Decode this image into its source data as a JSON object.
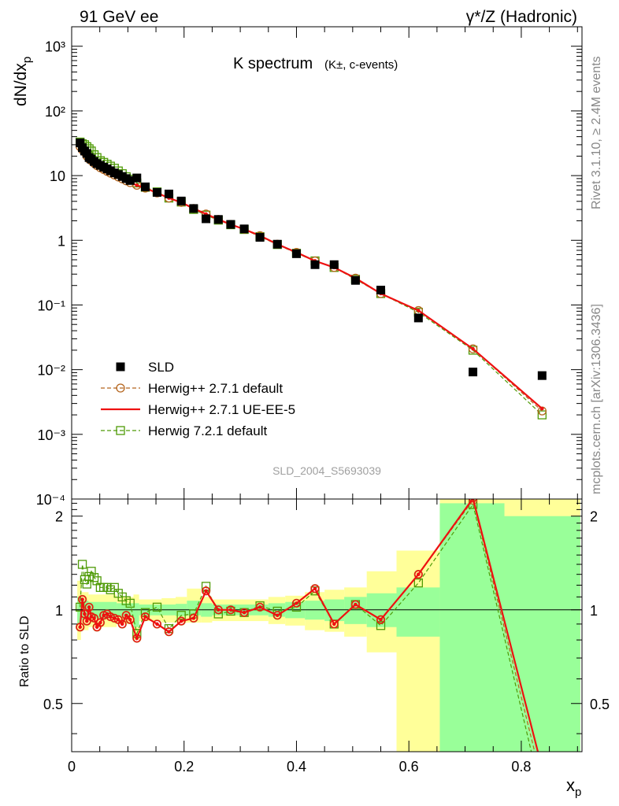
{
  "header": {
    "left": "91 GeV ee",
    "right": "γ*/Z (Hadronic)"
  },
  "side_labels": {
    "rivet": "Rivet 3.1.10, ≥ 2.4M events",
    "mcplots": "mcplots.cern.ch [arXiv:1306.3436]"
  },
  "chart_data": {
    "type": "scatter",
    "title_main": "K spectrum",
    "title_sub": "(K±, c-events)",
    "analysis_id": "SLD_2004_S5693039",
    "ylabel_main": "dN/dx",
    "ylabel_main_sub": "p",
    "ylabel_ratio": "Ratio to SLD",
    "xlabel": "x",
    "xlabel_sub": "p",
    "xlim": [
      0,
      0.908
    ],
    "ylim_main": [
      0.0001,
      2000
    ],
    "yscale_main": "log",
    "ylim_ratio": [
      0.35,
      2.27
    ],
    "yscale_ratio": "log",
    "x_ticks": [
      "0",
      "0.2",
      "0.4",
      "0.6",
      "0.8"
    ],
    "y_ticks_main": [
      "10⁻⁴",
      "10⁻³",
      "10⁻²",
      "10⁻¹",
      "1",
      "10",
      "10²",
      "10³"
    ],
    "y_ticks_ratio": [
      "0.5",
      "1",
      "2"
    ],
    "legend_position": "lower-left",
    "x": [
      0.015,
      0.019,
      0.023,
      0.027,
      0.031,
      0.035,
      0.04,
      0.045,
      0.051,
      0.057,
      0.063,
      0.069,
      0.076,
      0.083,
      0.09,
      0.097,
      0.104,
      0.116,
      0.131,
      0.152,
      0.173,
      0.195,
      0.217,
      0.239,
      0.261,
      0.283,
      0.307,
      0.335,
      0.366,
      0.4,
      0.433,
      0.467,
      0.505,
      0.55,
      0.617,
      0.714,
      0.837
    ],
    "series": [
      {
        "name": "SLD",
        "marker": "filled-square",
        "color": "#000000",
        "values": [
          32,
          27,
          24,
          22,
          19,
          18,
          16.5,
          15.3,
          14.4,
          13.5,
          12.7,
          11.9,
          11,
          10.4,
          9.7,
          9,
          8.4,
          9.2,
          6.7,
          5.5,
          5.2,
          4.05,
          3.1,
          2.15,
          2.1,
          1.76,
          1.5,
          1.11,
          0.87,
          0.62,
          0.42,
          0.42,
          0.24,
          0.17,
          0.063,
          0.0092,
          0.0081
        ]
      },
      {
        "name": "Herwig++ 2.7.1 default",
        "marker": "open-circle",
        "line": "dashed",
        "color": "#b5651d",
        "values": [
          28,
          25,
          23,
          20,
          18,
          17,
          15.5,
          14.3,
          13.2,
          12.4,
          11.6,
          10.9,
          10.2,
          9.5,
          8.9,
          8.3,
          7.8,
          7.1,
          6.4,
          5.4,
          4.5,
          3.85,
          3.1,
          2.55,
          2.1,
          1.76,
          1.48,
          1.18,
          0.87,
          0.65,
          0.48,
          0.38,
          0.26,
          0.15,
          0.082,
          0.021,
          0.0023
        ]
      },
      {
        "name": "Herwig++ 2.7.1 UE-EE-5",
        "marker": "small-circle",
        "line": "solid",
        "color": "#ee1111",
        "values": [
          28,
          25,
          23,
          20,
          18,
          17,
          15.5,
          14.3,
          13.2,
          12.4,
          11.6,
          10.9,
          10.2,
          9.5,
          8.9,
          8.3,
          7.8,
          7.1,
          6.4,
          5.4,
          4.5,
          3.85,
          3.1,
          2.55,
          2.1,
          1.76,
          1.48,
          1.18,
          0.87,
          0.65,
          0.48,
          0.38,
          0.26,
          0.15,
          0.082,
          0.021,
          0.0025
        ]
      },
      {
        "name": "Herwig 7.2.1 default",
        "marker": "open-square",
        "line": "dashed",
        "color": "#4e9a06",
        "values": [
          33,
          31,
          30,
          28,
          26,
          24,
          21,
          19,
          17,
          16,
          15,
          14,
          13,
          11.8,
          10.7,
          9.6,
          8.8,
          7.7,
          6.6,
          5.6,
          4.5,
          3.9,
          3.0,
          2.45,
          2.05,
          1.74,
          1.47,
          1.14,
          0.86,
          0.63,
          0.48,
          0.38,
          0.25,
          0.15,
          0.077,
          0.02,
          0.002
        ]
      }
    ],
    "ratio": {
      "reference": "SLD",
      "bands": [
        {
          "x0": 0.01,
          "x1": 0.0165,
          "inner": [
            0.9,
            1.1
          ],
          "outer": [
            0.8,
            1.24
          ]
        },
        {
          "x0": 0.0165,
          "x1": 0.03,
          "inner": [
            0.93,
            1.07
          ],
          "outer": [
            0.86,
            1.14
          ]
        },
        {
          "x0": 0.03,
          "x1": 0.08,
          "inner": [
            0.94,
            1.06
          ],
          "outer": [
            0.88,
            1.12
          ]
        },
        {
          "x0": 0.08,
          "x1": 0.11,
          "inner": [
            0.95,
            1.05
          ],
          "outer": [
            0.9,
            1.1
          ]
        },
        {
          "x0": 0.11,
          "x1": 0.12,
          "inner": [
            0.88,
            1.05
          ],
          "outer": [
            0.8,
            1.12
          ]
        },
        {
          "x0": 0.12,
          "x1": 0.16,
          "inner": [
            0.96,
            1.04
          ],
          "outer": [
            0.92,
            1.08
          ]
        },
        {
          "x0": 0.16,
          "x1": 0.185,
          "inner": [
            0.96,
            1.04
          ],
          "outer": [
            0.91,
            1.09
          ]
        },
        {
          "x0": 0.185,
          "x1": 0.205,
          "inner": [
            0.955,
            1.045
          ],
          "outer": [
            0.91,
            1.1
          ]
        },
        {
          "x0": 0.205,
          "x1": 0.23,
          "inner": [
            0.96,
            1.07
          ],
          "outer": [
            0.91,
            1.17
          ]
        },
        {
          "x0": 0.23,
          "x1": 0.25,
          "inner": [
            0.95,
            1.05
          ],
          "outer": [
            0.91,
            1.1
          ]
        },
        {
          "x0": 0.25,
          "x1": 0.35,
          "inner": [
            0.96,
            1.04
          ],
          "outer": [
            0.92,
            1.08
          ]
        },
        {
          "x0": 0.35,
          "x1": 0.38,
          "inner": [
            0.95,
            1.05
          ],
          "outer": [
            0.9,
            1.1
          ]
        },
        {
          "x0": 0.38,
          "x1": 0.415,
          "inner": [
            0.94,
            1.06
          ],
          "outer": [
            0.89,
            1.11
          ]
        },
        {
          "x0": 0.415,
          "x1": 0.45,
          "inner": [
            0.93,
            1.07
          ],
          "outer": [
            0.86,
            1.14
          ]
        },
        {
          "x0": 0.45,
          "x1": 0.485,
          "inner": [
            0.92,
            1.08
          ],
          "outer": [
            0.85,
            1.16
          ]
        },
        {
          "x0": 0.485,
          "x1": 0.525,
          "inner": [
            0.9,
            1.1
          ],
          "outer": [
            0.82,
            1.18
          ]
        },
        {
          "x0": 0.525,
          "x1": 0.578,
          "inner": [
            0.88,
            1.13
          ],
          "outer": [
            0.73,
            1.33
          ]
        },
        {
          "x0": 0.578,
          "x1": 0.655,
          "inner": [
            0.82,
            1.18
          ],
          "outer": [
            0.3,
            1.55
          ]
        },
        {
          "x0": 0.655,
          "x1": 0.77,
          "inner": [
            0.3,
            2.2
          ],
          "outer": [
            0.3,
            2.4
          ]
        },
        {
          "x0": 0.77,
          "x1": 0.905,
          "inner": [
            0.3,
            2.0
          ],
          "outer": [
            0.3,
            2.4
          ]
        }
      ],
      "series": [
        {
          "name": "Herwig++ 2.7.1 default",
          "values": [
            0.88,
            1.08,
            0.97,
            0.92,
            1.02,
            0.95,
            0.94,
            0.88,
            0.91,
            0.96,
            0.97,
            0.95,
            0.94,
            0.93,
            0.9,
            0.96,
            0.93,
            0.81,
            0.95,
            0.9,
            0.85,
            0.92,
            0.94,
            1.15,
            1.0,
            1.0,
            0.98,
            1.02,
            0.96,
            1.05,
            1.17,
            0.9,
            1.04,
            0.93,
            1.3,
            2.25,
            0.28
          ]
        },
        {
          "name": "Herwig++ 2.7.1 UE-EE-5",
          "values": [
            0.88,
            1.08,
            0.97,
            0.92,
            1.02,
            0.95,
            0.94,
            0.88,
            0.91,
            0.96,
            0.97,
            0.95,
            0.94,
            0.93,
            0.9,
            0.96,
            0.93,
            0.81,
            0.95,
            0.9,
            0.85,
            0.92,
            0.94,
            1.15,
            1.0,
            1.0,
            0.98,
            1.02,
            0.96,
            1.05,
            1.17,
            0.9,
            1.04,
            0.93,
            1.3,
            2.28,
            0.31
          ]
        },
        {
          "name": "Herwig 7.2.1 default",
          "values": [
            1.02,
            1.4,
            1.25,
            1.21,
            1.28,
            1.33,
            1.27,
            1.24,
            1.18,
            1.18,
            1.18,
            1.16,
            1.18,
            1.13,
            1.1,
            1.07,
            1.05,
            0.84,
            0.98,
            1.02,
            0.87,
            0.96,
            0.97,
            1.19,
            0.97,
            0.99,
            0.98,
            1.03,
            0.99,
            1.02,
            1.15,
            0.9,
            1.04,
            0.89,
            1.22,
            2.18,
            0.25
          ]
        }
      ]
    }
  }
}
